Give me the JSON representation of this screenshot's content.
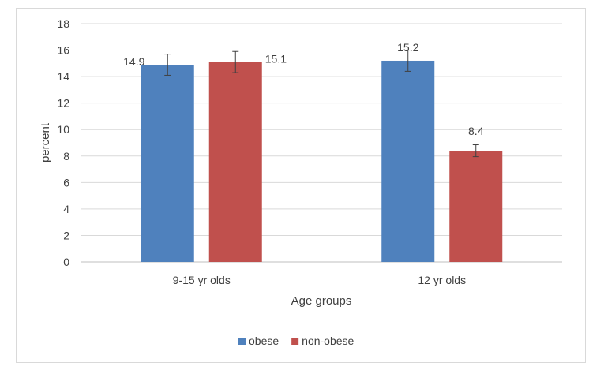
{
  "chart_data": {
    "type": "bar",
    "categories": [
      "9-15 yr olds",
      "12 yr olds"
    ],
    "series": [
      {
        "name": "obese",
        "color": "#4f81bd",
        "values": [
          14.9,
          15.2
        ],
        "error": [
          0.8,
          0.8
        ]
      },
      {
        "name": "non-obese",
        "color": "#c0504d",
        "values": [
          15.1,
          8.4
        ],
        "error": [
          0.8,
          0.45
        ]
      }
    ],
    "data_labels": [
      [
        "14.9",
        "15.2"
      ],
      [
        "15.1",
        "8.4"
      ]
    ],
    "xlabel": "Age groups",
    "ylabel": "percent",
    "ylim": [
      0,
      18
    ],
    "yticks": [
      "0",
      "2",
      "4",
      "6",
      "8",
      "10",
      "12",
      "14",
      "16",
      "18"
    ],
    "grid": true,
    "legend_position": "bottom"
  }
}
